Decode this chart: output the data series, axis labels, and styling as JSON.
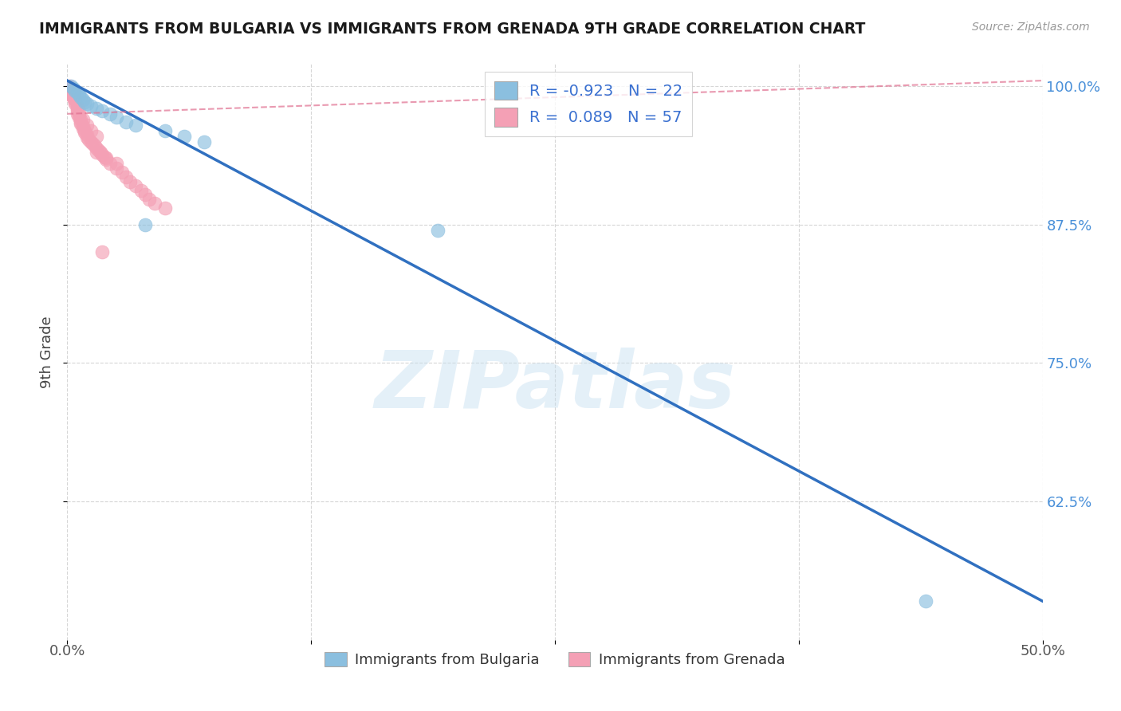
{
  "title": "IMMIGRANTS FROM BULGARIA VS IMMIGRANTS FROM GRENADA 9TH GRADE CORRELATION CHART",
  "source": "Source: ZipAtlas.com",
  "ylabel": "9th Grade",
  "legend_label_blue": "Immigrants from Bulgaria",
  "legend_label_pink": "Immigrants from Grenada",
  "R_blue": -0.923,
  "N_blue": 22,
  "R_pink": 0.089,
  "N_pink": 57,
  "xlim": [
    0.0,
    0.5
  ],
  "ylim": [
    0.5,
    1.02
  ],
  "ytick_labels": [
    "100.0%",
    "87.5%",
    "75.0%",
    "62.5%"
  ],
  "ytick_vals": [
    1.0,
    0.875,
    0.75,
    0.625
  ],
  "grid_color": "#cccccc",
  "blue_color": "#8bbfdf",
  "pink_color": "#f4a0b5",
  "blue_line_color": "#3070c0",
  "pink_line_color": "#e07090",
  "watermark": "ZIPatlas",
  "blue_scatter_x": [
    0.002,
    0.003,
    0.004,
    0.005,
    0.006,
    0.007,
    0.008,
    0.009,
    0.01,
    0.012,
    0.015,
    0.018,
    0.022,
    0.025,
    0.03,
    0.035,
    0.04,
    0.05,
    0.06,
    0.07,
    0.19,
    0.44
  ],
  "blue_scatter_y": [
    1.0,
    0.998,
    0.996,
    0.994,
    0.992,
    0.99,
    0.988,
    0.986,
    0.984,
    0.982,
    0.98,
    0.978,
    0.975,
    0.972,
    0.968,
    0.965,
    0.875,
    0.96,
    0.955,
    0.95,
    0.87,
    0.535
  ],
  "pink_scatter_x": [
    0.001,
    0.001,
    0.002,
    0.002,
    0.002,
    0.003,
    0.003,
    0.003,
    0.003,
    0.004,
    0.004,
    0.004,
    0.005,
    0.005,
    0.005,
    0.006,
    0.006,
    0.006,
    0.007,
    0.007,
    0.007,
    0.008,
    0.008,
    0.009,
    0.009,
    0.01,
    0.01,
    0.011,
    0.012,
    0.013,
    0.014,
    0.015,
    0.016,
    0.017,
    0.018,
    0.019,
    0.02,
    0.022,
    0.025,
    0.028,
    0.03,
    0.032,
    0.035,
    0.038,
    0.04,
    0.042,
    0.045,
    0.05,
    0.015,
    0.02,
    0.025,
    0.005,
    0.008,
    0.01,
    0.012,
    0.015,
    0.018
  ],
  "pink_scatter_y": [
    1.0,
    0.998,
    0.996,
    0.994,
    0.992,
    0.995,
    0.993,
    0.991,
    0.989,
    0.988,
    0.986,
    0.984,
    0.982,
    0.98,
    0.978,
    0.976,
    0.974,
    0.972,
    0.97,
    0.968,
    0.966,
    0.964,
    0.962,
    0.96,
    0.958,
    0.956,
    0.954,
    0.952,
    0.95,
    0.948,
    0.946,
    0.944,
    0.942,
    0.94,
    0.938,
    0.936,
    0.934,
    0.93,
    0.926,
    0.922,
    0.918,
    0.914,
    0.91,
    0.906,
    0.902,
    0.898,
    0.894,
    0.89,
    0.94,
    0.935,
    0.93,
    0.975,
    0.97,
    0.965,
    0.96,
    0.955,
    0.85
  ],
  "blue_line_x0": 0.0,
  "blue_line_y0": 1.005,
  "blue_line_x1": 0.5,
  "blue_line_y1": 0.535,
  "pink_line_x0": 0.0,
  "pink_line_y0": 0.975,
  "pink_line_x1": 0.5,
  "pink_line_y1": 1.005
}
